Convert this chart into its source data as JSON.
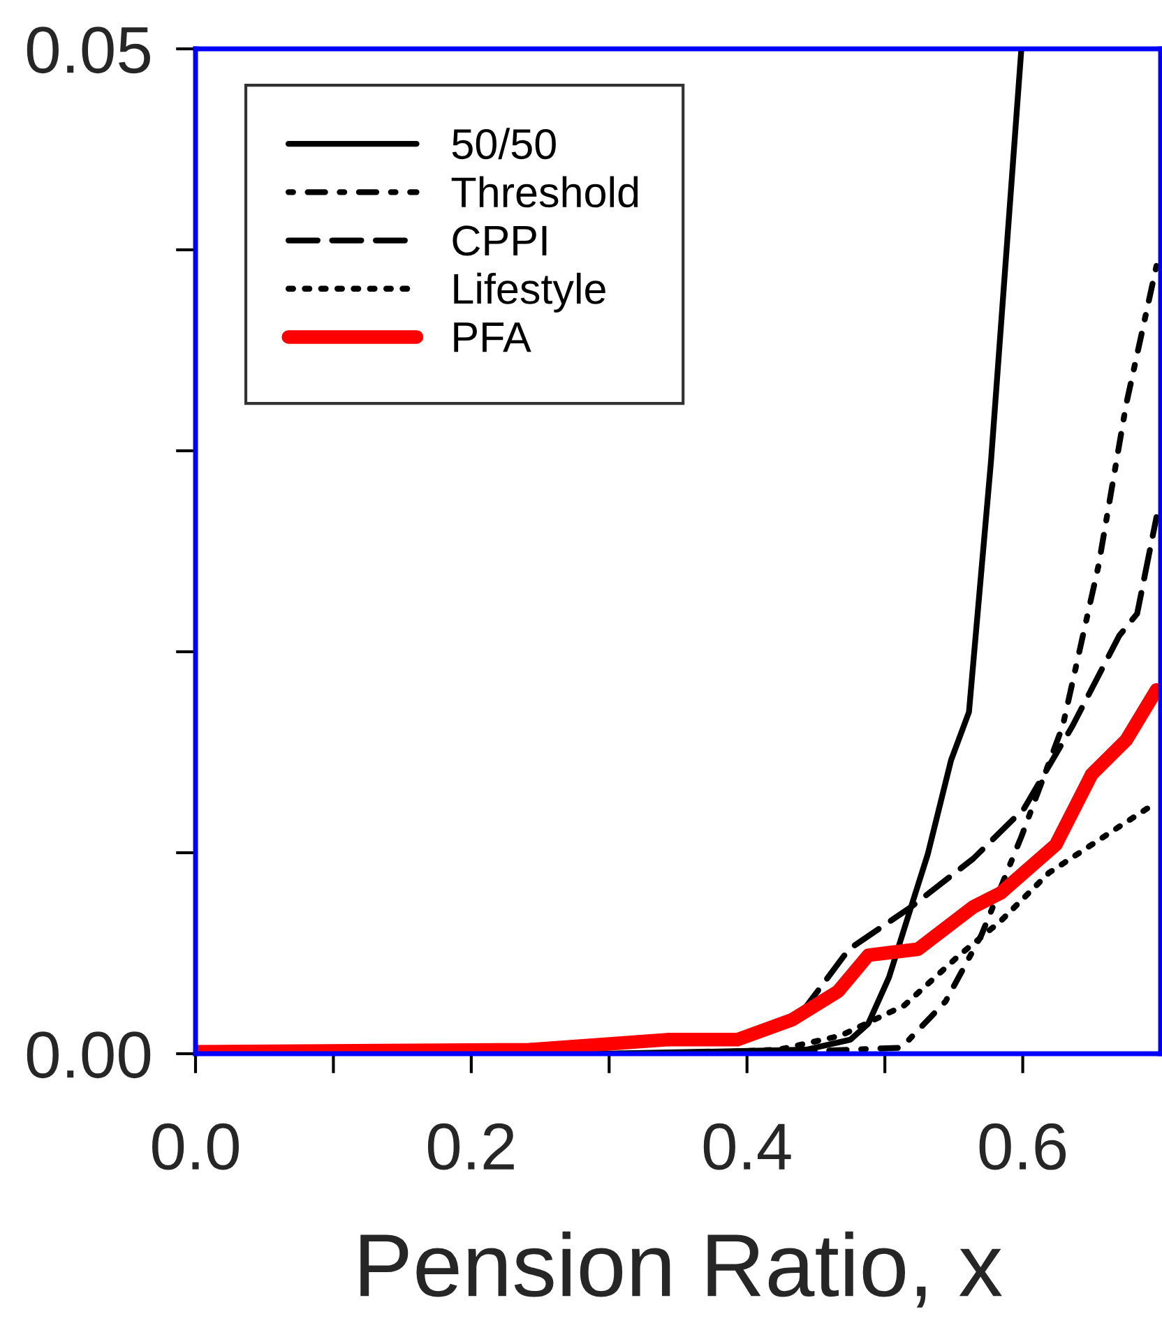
{
  "chart_data": {
    "type": "line",
    "xlabel": "Pension Ratio, x",
    "xlim": [
      0,
      0.7
    ],
    "ylim": [
      0,
      0.05
    ],
    "xticks": [
      {
        "value": 0.0,
        "label": "0.0"
      },
      {
        "value": 0.1,
        "label": null
      },
      {
        "value": 0.2,
        "label": "0.2"
      },
      {
        "value": 0.3,
        "label": null
      },
      {
        "value": 0.4,
        "label": "0.4"
      },
      {
        "value": 0.5,
        "label": null
      },
      {
        "value": 0.6,
        "label": "0.6"
      }
    ],
    "yticks": [
      {
        "value": 0.0,
        "label": "0.00"
      },
      {
        "value": 0.01,
        "label": null
      },
      {
        "value": 0.02,
        "label": null
      },
      {
        "value": 0.03,
        "label": null
      },
      {
        "value": 0.04,
        "label": null
      },
      {
        "value": 0.05,
        "label": "0.05"
      }
    ],
    "legend": "top left",
    "grid": false,
    "marker": "none",
    "series": [
      {
        "name": "50/50",
        "color": "#000000",
        "line_style": "solid",
        "x": [
          0,
          0.3,
          0.443,
          0.475,
          0.488,
          0.503,
          0.519,
          0.531,
          0.548,
          0.561,
          0.577,
          0.599
        ],
        "values": [
          0,
          0,
          0.0002,
          0.0007,
          0.0015,
          0.0038,
          0.0073,
          0.0099,
          0.0146,
          0.017,
          0.0295,
          0.05
        ]
      },
      {
        "name": "Threshold",
        "color": "#000000",
        "line_style": "dashdot",
        "x": [
          0,
          0.4,
          0.512,
          0.544,
          0.57,
          0.599,
          0.629,
          0.655,
          0.675,
          0.697
        ],
        "values": [
          0,
          0,
          0.0003,
          0.0026,
          0.0059,
          0.0108,
          0.0163,
          0.0243,
          0.0323,
          0.0392
        ]
      },
      {
        "name": "CPPI",
        "color": "#000000",
        "line_style": "dashed",
        "x": [
          0,
          0.342,
          0.393,
          0.438,
          0.474,
          0.519,
          0.564,
          0.601,
          0.624,
          0.636,
          0.67,
          0.683,
          0.697
        ],
        "values": [
          0,
          0.0005,
          0.0007,
          0.0019,
          0.0052,
          0.0073,
          0.0097,
          0.0122,
          0.0149,
          0.0163,
          0.0208,
          0.0219,
          0.0267
        ]
      },
      {
        "name": "Lifestyle",
        "color": "#000000",
        "line_style": "dotted",
        "x": [
          0,
          0.35,
          0.423,
          0.468,
          0.514,
          0.554,
          0.584,
          0.619,
          0.67,
          0.697
        ],
        "values": [
          0,
          0,
          0.0002,
          0.0009,
          0.0024,
          0.0049,
          0.0066,
          0.009,
          0.0113,
          0.0125
        ]
      },
      {
        "name": "PFA",
        "color": "#ff0000",
        "line_style": "solid",
        "x": [
          0,
          0.242,
          0.302,
          0.342,
          0.393,
          0.433,
          0.466,
          0.488,
          0.524,
          0.564,
          0.584,
          0.624,
          0.65,
          0.675,
          0.697
        ],
        "values": [
          0.0001,
          0.0002,
          0.0005,
          0.0007,
          0.0007,
          0.0017,
          0.0031,
          0.0049,
          0.0052,
          0.0073,
          0.008,
          0.0104,
          0.0139,
          0.0156,
          0.0181
        ]
      }
    ]
  }
}
